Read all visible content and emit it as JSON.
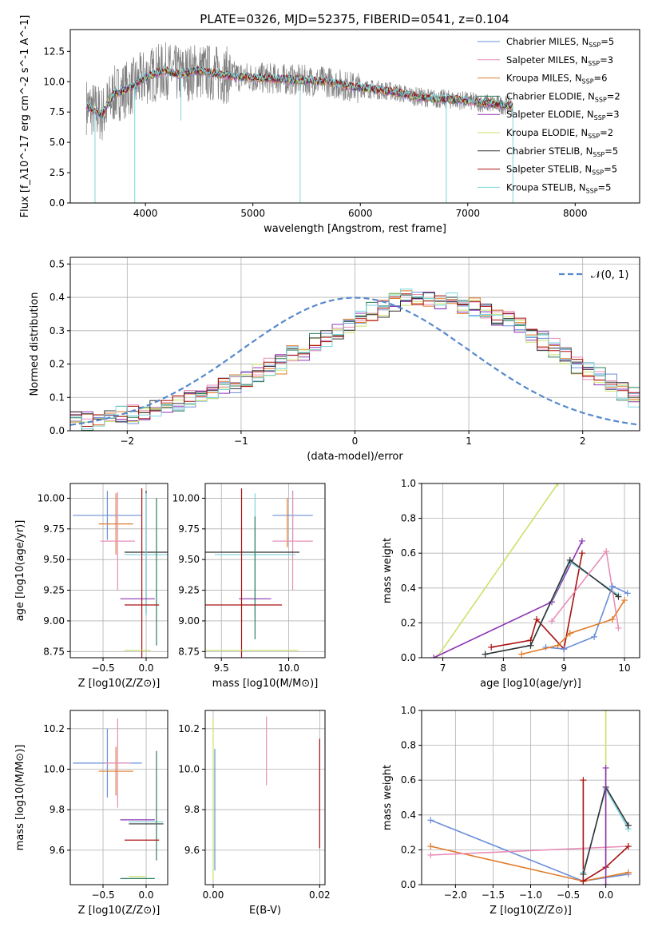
{
  "figure": {
    "title": "PLATE=0326, MJD=52375, FIBERID=0541, z=0.104"
  },
  "colors": {
    "chabrier_miles": "#6a8fd8",
    "salpeter_miles": "#e88fb8",
    "kroupa_miles": "#e07b2a",
    "chabrier_elodie": "#2f7f5f",
    "salpeter_elodie": "#8e34b3",
    "kroupa_elodie": "#c9e36a",
    "chabrier_stelib": "#333333",
    "salpeter_stelib": "#aa1111",
    "kroupa_stelib": "#7dd5de",
    "data": "#808080",
    "normal": "#5588cc"
  },
  "chart_data": [
    {
      "id": "spectrum",
      "type": "line",
      "xlabel": "wavelength [Angstrom, rest frame]",
      "ylabel": "Flux [f_λ10^-17 erg cm^-2 s^-1 A^-1]",
      "xlim": [
        3300,
        8600
      ],
      "ylim": [
        0,
        14.3
      ],
      "xticks": [
        4000,
        5000,
        6000,
        7000,
        8000
      ],
      "yticks": [
        0.0,
        2.5,
        5.0,
        7.5,
        10.0,
        12.5
      ],
      "grid": false,
      "legend": "top-right",
      "continuum": {
        "x": [
          3450,
          3600,
          3700,
          3800,
          3900,
          4000,
          4100,
          4200,
          4300,
          4500,
          4700,
          4900,
          5100,
          5300,
          5500,
          5700,
          5900,
          6100,
          6300,
          6500,
          6700,
          6900,
          7100,
          7300,
          7420
        ],
        "y": [
          8.0,
          7.3,
          8.9,
          9.3,
          9.7,
          10.4,
          10.7,
          10.9,
          10.6,
          10.9,
          10.6,
          10.4,
          10.3,
          10.2,
          10.1,
          10.0,
          9.6,
          9.4,
          9.2,
          8.8,
          8.6,
          8.5,
          8.3,
          8.1,
          8.0
        ]
      },
      "absorption_lines": [
        {
          "x": 3530,
          "y": 0
        },
        {
          "x": 3900,
          "y": 0
        },
        {
          "x": 4330,
          "y": 6.8
        },
        {
          "x": 5440,
          "y": 0
        },
        {
          "x": 6800,
          "y": 0
        },
        {
          "x": 7420,
          "y": 0
        }
      ],
      "series": [
        {
          "name": "Chabrier MILES, N_SSP=5",
          "color_key": "chabrier_miles"
        },
        {
          "name": "Salpeter MILES, N_SSP=3",
          "color_key": "salpeter_miles"
        },
        {
          "name": "Kroupa MILES, N_SSP=6",
          "color_key": "kroupa_miles"
        },
        {
          "name": "Chabrier ELODIE, N_SSP=2",
          "color_key": "chabrier_elodie"
        },
        {
          "name": "Salpeter ELODIE, N_SSP=3",
          "color_key": "salpeter_elodie"
        },
        {
          "name": "Kroupa ELODIE, N_SSP=2",
          "color_key": "kroupa_elodie"
        },
        {
          "name": "Chabrier STELIB, N_SSP=5",
          "color_key": "chabrier_stelib"
        },
        {
          "name": "Salpeter STELIB, N_SSP=5",
          "color_key": "salpeter_stelib"
        },
        {
          "name": "Kroupa STELIB, N_SSP=5",
          "color_key": "kroupa_stelib"
        }
      ]
    },
    {
      "id": "residuals",
      "type": "bar",
      "xlabel": "(data-model)/error",
      "ylabel": "Normed distribution",
      "xlim": [
        -2.5,
        2.5
      ],
      "ylim": [
        0,
        0.52
      ],
      "xticks": [
        -2,
        -1,
        0,
        1,
        2
      ],
      "yticks": [
        0.0,
        0.1,
        0.2,
        0.3,
        0.4,
        0.5
      ],
      "grid": true,
      "legend": "top-right",
      "normal_label": "𝒩(0, 1)",
      "bin_width": 0.1,
      "bin_start": -2.5,
      "base_values": [
        0.03,
        0.03,
        0.035,
        0.04,
        0.045,
        0.05,
        0.055,
        0.065,
        0.075,
        0.085,
        0.095,
        0.1,
        0.115,
        0.13,
        0.14,
        0.155,
        0.17,
        0.19,
        0.2,
        0.225,
        0.24,
        0.265,
        0.28,
        0.3,
        0.32,
        0.34,
        0.36,
        0.37,
        0.385,
        0.4,
        0.405,
        0.4,
        0.39,
        0.385,
        0.38,
        0.37,
        0.36,
        0.345,
        0.33,
        0.315,
        0.29,
        0.27,
        0.25,
        0.225,
        0.2,
        0.18,
        0.16,
        0.14,
        0.12,
        0.1
      ],
      "series_colors": [
        "chabrier_miles",
        "salpeter_miles",
        "kroupa_miles",
        "chabrier_elodie",
        "salpeter_elodie",
        "kroupa_elodie",
        "chabrier_stelib",
        "salpeter_stelib",
        "kroupa_stelib"
      ]
    },
    {
      "id": "age_vs_z",
      "type": "scatter",
      "xlabel": "Z [log10(Z/Z⊙)]",
      "ylabel": "age  [log10(age/yr)]",
      "xlim": [
        -0.88,
        0.25
      ],
      "ylim": [
        8.7,
        10.12
      ],
      "xticks": [
        -0.5,
        0.0
      ],
      "yticks": [
        8.75,
        9.0,
        9.25,
        9.5,
        9.75,
        10.0
      ],
      "grid": true,
      "points": [
        {
          "color_key": "chabrier_miles",
          "x": -0.45,
          "y": 9.86,
          "xerr": 0.4,
          "yerr": 0.2
        },
        {
          "color_key": "kroupa_miles",
          "x": -0.35,
          "y": 9.79,
          "xerr": 0.2,
          "yerr": 0.25
        },
        {
          "color_key": "salpeter_miles",
          "x": -0.33,
          "y": 9.65,
          "xerr": 0.2,
          "yerr": 0.4
        },
        {
          "color_key": "chabrier_stelib",
          "x": 0.0,
          "y": 9.56,
          "xerr": 0.25,
          "yerr": 0.5
        },
        {
          "color_key": "kroupa_stelib",
          "x": 0.0,
          "y": 9.54,
          "xerr": 0.25,
          "yerr": 0.5
        },
        {
          "color_key": "salpeter_elodie",
          "x": -0.1,
          "y": 9.18,
          "xerr": 0.2,
          "yerr": 0.0
        },
        {
          "color_key": "chabrier_elodie",
          "x": 0.12,
          "y": 9.4,
          "xerr": 0.0,
          "yerr": 0.6
        },
        {
          "color_key": "salpeter_stelib",
          "x": -0.05,
          "y": 9.13,
          "xerr": 0.2,
          "yerr": 0.95
        },
        {
          "color_key": "kroupa_elodie",
          "x": -0.1,
          "y": 8.76,
          "xerr": 0.15,
          "yerr": 0.0
        }
      ]
    },
    {
      "id": "age_vs_mass",
      "type": "scatter",
      "xlabel": "mass [log10(M/M⊙)]",
      "ylabel": "",
      "xlim": [
        9.38,
        10.27
      ],
      "ylim": [
        8.7,
        10.12
      ],
      "xticks": [
        9.5,
        10.0
      ],
      "yticks": [
        8.75,
        9.0,
        9.25,
        9.5,
        9.75,
        10.0
      ],
      "grid": true,
      "points": [
        {
          "color_key": "chabrier_miles",
          "x": 10.03,
          "y": 9.86,
          "xerr": 0.15,
          "yerr": 0.2
        },
        {
          "color_key": "kroupa_miles",
          "x": 9.99,
          "y": 9.8,
          "xerr": 0.0,
          "yerr": 0.2
        },
        {
          "color_key": "salpeter_miles",
          "x": 10.03,
          "y": 9.65,
          "xerr": 0.15,
          "yerr": 0.4
        },
        {
          "color_key": "chabrier_stelib",
          "x": 9.73,
          "y": 9.56,
          "xerr": 0.35,
          "yerr": 0.0
        },
        {
          "color_key": "kroupa_stelib",
          "x": 9.75,
          "y": 9.54,
          "xerr": 0.3,
          "yerr": 0.5
        },
        {
          "color_key": "salpeter_elodie",
          "x": 9.75,
          "y": 9.18,
          "xerr": 0.12,
          "yerr": 0.0
        },
        {
          "color_key": "chabrier_elodie",
          "x": 9.75,
          "y": 9.35,
          "xerr": 0.0,
          "yerr": 0.5
        },
        {
          "color_key": "salpeter_stelib",
          "x": 9.65,
          "y": 9.13,
          "xerr": 0.3,
          "yerr": 0.95
        },
        {
          "color_key": "kroupa_elodie",
          "x": 9.47,
          "y": 8.76,
          "xerr": 0.6,
          "yerr": 0.0
        }
      ]
    },
    {
      "id": "weight_vs_age",
      "type": "line",
      "xlabel": "age  [log10(age/yr)]",
      "ylabel": "mass weight",
      "xlim": [
        6.65,
        10.25
      ],
      "ylim": [
        0,
        1
      ],
      "xticks": [
        7,
        8,
        9,
        10
      ],
      "yticks": [
        0.0,
        0.2,
        0.4,
        0.6,
        0.8,
        1.0
      ],
      "grid": true,
      "series": [
        {
          "color_key": "kroupa_elodie",
          "x": [
            6.9,
            8.9
          ],
          "y": [
            0.0,
            1.0
          ]
        },
        {
          "color_key": "salpeter_elodie",
          "x": [
            6.85,
            8.8,
            9.3
          ],
          "y": [
            0.0,
            0.32,
            0.67
          ]
        },
        {
          "color_key": "salpeter_stelib",
          "x": [
            7.8,
            8.45,
            8.55,
            9.0,
            9.3
          ],
          "y": [
            0.06,
            0.1,
            0.22,
            0.05,
            0.6
          ]
        },
        {
          "color_key": "kroupa_stelib",
          "x": [
            7.7,
            8.45,
            9.1,
            9.9
          ],
          "y": [
            0.02,
            0.07,
            0.55,
            0.36
          ]
        },
        {
          "color_key": "chabrier_stelib",
          "x": [
            7.7,
            8.45,
            9.1,
            9.9
          ],
          "y": [
            0.02,
            0.07,
            0.56,
            0.35
          ]
        },
        {
          "color_key": "salpeter_miles",
          "x": [
            8.8,
            9.7,
            9.9
          ],
          "y": [
            0.21,
            0.61,
            0.17
          ]
        },
        {
          "color_key": "chabrier_miles",
          "x": [
            8.7,
            9.0,
            9.5,
            9.8,
            10.05
          ],
          "y": [
            0.06,
            0.05,
            0.12,
            0.41,
            0.37
          ]
        },
        {
          "color_key": "kroupa_miles",
          "x": [
            8.3,
            8.9,
            9.1,
            9.8,
            10.0
          ],
          "y": [
            0.02,
            0.07,
            0.14,
            0.22,
            0.33
          ]
        }
      ]
    },
    {
      "id": "mass_vs_z",
      "type": "scatter",
      "xlabel": "Z [log10(Z/Z⊙)]",
      "ylabel": "mass [log10(M/M⊙)]",
      "xlim": [
        -0.88,
        0.25
      ],
      "ylim": [
        9.43,
        10.29
      ],
      "xticks": [
        -0.5,
        0.0
      ],
      "yticks": [
        9.6,
        9.8,
        10.0,
        10.2
      ],
      "grid": true,
      "points": [
        {
          "color_key": "chabrier_miles",
          "x": -0.45,
          "y": 10.03,
          "xerr": 0.4,
          "yerr": 0.17
        },
        {
          "color_key": "kroupa_miles",
          "x": -0.35,
          "y": 9.99,
          "xerr": 0.2,
          "yerr": 0.12
        },
        {
          "color_key": "salpeter_miles",
          "x": -0.33,
          "y": 10.03,
          "xerr": 0.15,
          "yerr": 0.22
        },
        {
          "color_key": "salpeter_elodie",
          "x": -0.1,
          "y": 9.75,
          "xerr": 0.2,
          "yerr": 0.0
        },
        {
          "color_key": "chabrier_stelib",
          "x": 0.0,
          "y": 9.73,
          "xerr": 0.2,
          "yerr": 0.0
        },
        {
          "color_key": "kroupa_stelib",
          "x": 0.0,
          "y": 9.74,
          "xerr": 0.2,
          "yerr": 0.0
        },
        {
          "color_key": "chabrier_elodie",
          "x": 0.12,
          "y": 9.82,
          "xerr": 0.0,
          "yerr": 0.27
        },
        {
          "color_key": "salpeter_stelib",
          "x": -0.05,
          "y": 9.65,
          "xerr": 0.2,
          "yerr": 0.0
        },
        {
          "color_key": "kroupa_elodie",
          "x": -0.1,
          "y": 9.47,
          "xerr": 0.1,
          "yerr": 0.0
        },
        {
          "color_key": "chabrier_elodie",
          "x": -0.1,
          "y": 9.46,
          "xerr": 0.2,
          "yerr": 0.0
        }
      ]
    },
    {
      "id": "mass_vs_ebv",
      "type": "scatter",
      "xlabel": "E(B-V)",
      "ylabel": "",
      "xlim": [
        -0.0015,
        0.021
      ],
      "ylim": [
        9.43,
        10.29
      ],
      "xticks": [
        0.0,
        0.02
      ],
      "xtick_labels": [
        "0.00",
        "0.02"
      ],
      "yticks": [
        9.6,
        9.8,
        10.0,
        10.2
      ],
      "grid": true,
      "points": [
        {
          "color_key": "kroupa_elodie",
          "x": 0.0,
          "y": 9.85,
          "xerr": 0,
          "yerr": 0.4
        },
        {
          "color_key": "chabrier_miles",
          "x": 0.0003,
          "y": 9.8,
          "xerr": 0,
          "yerr": 0.3
        },
        {
          "color_key": "salpeter_miles",
          "x": 0.01,
          "y": 10.09,
          "xerr": 0,
          "yerr": 0.17
        },
        {
          "color_key": "salpeter_stelib",
          "x": 0.02,
          "y": 9.88,
          "xerr": 0,
          "yerr": 0.27
        }
      ]
    },
    {
      "id": "weight_vs_z",
      "type": "line",
      "xlabel": "Z [log10(Z/Z⊙)]",
      "ylabel": "mass weight",
      "xlim": [
        -2.45,
        0.45
      ],
      "ylim": [
        0,
        1
      ],
      "xticks": [
        -2.0,
        -1.5,
        -1.0,
        -0.5,
        0.0
      ],
      "yticks": [
        0.0,
        0.2,
        0.4,
        0.6,
        0.8,
        1.0
      ],
      "grid": true,
      "series": [
        {
          "color_key": "chabrier_miles",
          "x": [
            -2.33,
            -0.3,
            0.3
          ],
          "y": [
            0.37,
            0.02,
            0.06
          ]
        },
        {
          "color_key": "kroupa_miles",
          "x": [
            -2.33,
            -0.3,
            0.3
          ],
          "y": [
            0.22,
            0.02,
            0.07
          ]
        },
        {
          "color_key": "salpeter_miles",
          "x": [
            -2.33,
            0.3
          ],
          "y": [
            0.17,
            0.22
          ]
        },
        {
          "color_key": "kroupa_elodie",
          "x": [
            0.0,
            0.0
          ],
          "y": [
            0.0,
            1.0
          ]
        },
        {
          "color_key": "salpeter_stelib",
          "x": [
            -0.3,
            -0.3,
            0.0,
            0.3
          ],
          "y": [
            0.6,
            0.02,
            0.1,
            0.22
          ]
        },
        {
          "color_key": "kroupa_stelib",
          "x": [
            -0.3,
            0.0,
            0.3
          ],
          "y": [
            0.07,
            0.55,
            0.32
          ]
        },
        {
          "color_key": "chabrier_stelib",
          "x": [
            -0.3,
            0.0,
            0.3
          ],
          "y": [
            0.06,
            0.56,
            0.34
          ]
        },
        {
          "color_key": "salpeter_elodie",
          "x": [
            0.0,
            0.0
          ],
          "y": [
            0.0,
            0.67
          ]
        }
      ]
    }
  ]
}
